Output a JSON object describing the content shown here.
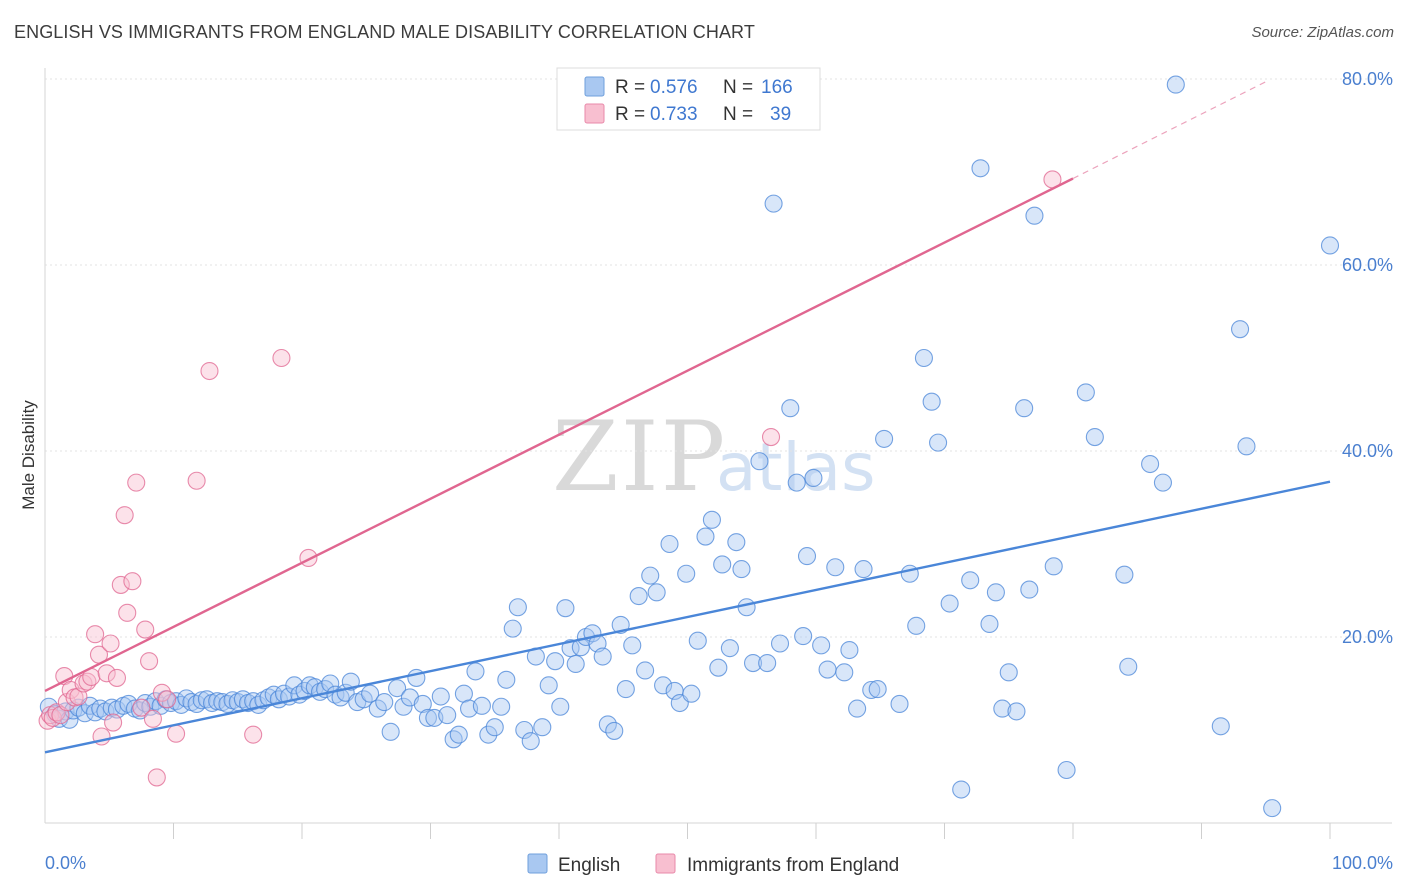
{
  "title": "ENGLISH VS IMMIGRANTS FROM ENGLAND MALE DISABILITY CORRELATION CHART",
  "source": "Source: ZipAtlas.com",
  "watermark": {
    "zip": "ZIP",
    "atlas": "atlas"
  },
  "legend": {
    "r_label": "R =",
    "n_label": "N =",
    "rows": [
      {
        "series": "English",
        "r": "0.576",
        "n": "166",
        "color": "#a9c8f1",
        "border": "#6f9fdc"
      },
      {
        "series": "Immigrants from England",
        "r": "0.733",
        "n": "39",
        "color": "#f8bfd0",
        "border": "#e98aaa"
      }
    ]
  },
  "chart_data": {
    "type": "scatter",
    "title": "ENGLISH VS IMMIGRANTS FROM ENGLAND MALE DISABILITY CORRELATION CHART",
    "xlabel": "",
    "ylabel": "Male Disability",
    "xlim": [
      0,
      100
    ],
    "ylim": [
      0,
      80
    ],
    "x_tick_labels": [
      "0.0%",
      "100.0%"
    ],
    "y_ticks": [
      20,
      40,
      60,
      80
    ],
    "y_tick_labels": [
      "20.0%",
      "40.0%",
      "60.0%",
      "80.0%"
    ],
    "grid": true,
    "legend_position": "top-center",
    "series": [
      {
        "name": "English",
        "color": "#4a86d8",
        "fill": "#a9c8f1",
        "trend": {
          "x0": 0,
          "y0": 7.6,
          "x1": 100,
          "y1": 36.7,
          "style": "solid"
        },
        "points": [
          [
            0.3,
            12.5
          ],
          [
            0.8,
            11.7
          ],
          [
            1.1,
            11.2
          ],
          [
            1.6,
            12.0
          ],
          [
            1.9,
            11.1
          ],
          [
            2.2,
            12.1
          ],
          [
            2.6,
            12.4
          ],
          [
            3.1,
            11.8
          ],
          [
            3.5,
            12.6
          ],
          [
            3.9,
            11.9
          ],
          [
            4.3,
            12.3
          ],
          [
            4.7,
            12.0
          ],
          [
            5.2,
            12.4
          ],
          [
            5.6,
            12.2
          ],
          [
            6.1,
            12.6
          ],
          [
            6.5,
            12.8
          ],
          [
            7.0,
            12.3
          ],
          [
            7.4,
            12.1
          ],
          [
            7.8,
            12.9
          ],
          [
            8.2,
            12.5
          ],
          [
            8.6,
            13.1
          ],
          [
            9.0,
            12.6
          ],
          [
            9.4,
            13.3
          ],
          [
            9.8,
            12.9
          ],
          [
            10.2,
            13.1
          ],
          [
            10.6,
            12.7
          ],
          [
            11.0,
            13.4
          ],
          [
            11.4,
            13.0
          ],
          [
            11.8,
            12.8
          ],
          [
            12.2,
            13.2
          ],
          [
            12.6,
            13.3
          ],
          [
            13.0,
            12.9
          ],
          [
            13.4,
            13.1
          ],
          [
            13.8,
            13.0
          ],
          [
            14.2,
            12.8
          ],
          [
            14.6,
            13.2
          ],
          [
            15.0,
            13.0
          ],
          [
            15.4,
            13.3
          ],
          [
            15.8,
            12.9
          ],
          [
            16.2,
            13.1
          ],
          [
            16.6,
            12.7
          ],
          [
            17.0,
            13.2
          ],
          [
            17.4,
            13.5
          ],
          [
            17.8,
            13.8
          ],
          [
            18.2,
            13.3
          ],
          [
            18.6,
            13.9
          ],
          [
            19.0,
            13.6
          ],
          [
            19.4,
            14.8
          ],
          [
            19.8,
            13.8
          ],
          [
            20.2,
            14.2
          ],
          [
            20.6,
            14.8
          ],
          [
            21.0,
            14.6
          ],
          [
            21.4,
            14.1
          ],
          [
            21.8,
            14.4
          ],
          [
            22.2,
            15.0
          ],
          [
            22.6,
            13.8
          ],
          [
            23.0,
            13.5
          ],
          [
            23.4,
            14.0
          ],
          [
            23.8,
            15.2
          ],
          [
            24.3,
            13.0
          ],
          [
            24.8,
            13.3
          ],
          [
            25.3,
            13.9
          ],
          [
            25.9,
            12.3
          ],
          [
            26.4,
            13.0
          ],
          [
            26.9,
            9.8
          ],
          [
            27.4,
            14.5
          ],
          [
            27.9,
            12.5
          ],
          [
            28.4,
            13.5
          ],
          [
            28.9,
            15.6
          ],
          [
            29.4,
            12.8
          ],
          [
            29.8,
            11.3
          ],
          [
            30.3,
            11.3
          ],
          [
            30.8,
            13.6
          ],
          [
            31.3,
            11.6
          ],
          [
            31.8,
            9.0
          ],
          [
            32.2,
            9.5
          ],
          [
            32.6,
            13.9
          ],
          [
            33.0,
            12.3
          ],
          [
            33.5,
            16.3
          ],
          [
            34.0,
            12.6
          ],
          [
            34.5,
            9.5
          ],
          [
            35.0,
            10.3
          ],
          [
            35.5,
            12.5
          ],
          [
            35.9,
            15.4
          ],
          [
            36.4,
            20.9
          ],
          [
            36.8,
            23.2
          ],
          [
            37.3,
            10.0
          ],
          [
            37.8,
            8.8
          ],
          [
            38.2,
            17.9
          ],
          [
            38.7,
            10.3
          ],
          [
            39.2,
            14.8
          ],
          [
            39.7,
            17.4
          ],
          [
            40.1,
            12.5
          ],
          [
            40.5,
            23.1
          ],
          [
            40.9,
            18.8
          ],
          [
            41.3,
            17.1
          ],
          [
            41.7,
            18.9
          ],
          [
            42.1,
            20.0
          ],
          [
            42.6,
            20.4
          ],
          [
            43.0,
            19.3
          ],
          [
            43.4,
            17.9
          ],
          [
            43.8,
            10.6
          ],
          [
            44.3,
            9.9
          ],
          [
            44.8,
            21.3
          ],
          [
            45.2,
            14.4
          ],
          [
            45.7,
            19.1
          ],
          [
            46.2,
            24.4
          ],
          [
            46.7,
            16.4
          ],
          [
            47.1,
            26.6
          ],
          [
            47.6,
            24.8
          ],
          [
            48.1,
            14.8
          ],
          [
            48.6,
            30.0
          ],
          [
            49.0,
            14.2
          ],
          [
            49.4,
            12.9
          ],
          [
            49.9,
            26.8
          ],
          [
            50.3,
            13.9
          ],
          [
            50.8,
            19.6
          ],
          [
            51.4,
            30.8
          ],
          [
            51.9,
            32.6
          ],
          [
            52.4,
            16.7
          ],
          [
            52.7,
            27.8
          ],
          [
            53.3,
            18.8
          ],
          [
            53.8,
            30.2
          ],
          [
            54.2,
            27.3
          ],
          [
            54.6,
            23.2
          ],
          [
            55.1,
            17.2
          ],
          [
            55.6,
            38.9
          ],
          [
            56.2,
            17.2
          ],
          [
            56.7,
            66.6
          ],
          [
            57.2,
            19.3
          ],
          [
            58.0,
            44.6
          ],
          [
            58.5,
            36.6
          ],
          [
            59.0,
            20.1
          ],
          [
            59.3,
            28.7
          ],
          [
            59.8,
            37.1
          ],
          [
            60.4,
            19.1
          ],
          [
            60.9,
            16.5
          ],
          [
            61.5,
            27.5
          ],
          [
            62.2,
            16.2
          ],
          [
            62.6,
            18.6
          ],
          [
            63.2,
            12.3
          ],
          [
            63.7,
            27.3
          ],
          [
            64.3,
            14.3
          ],
          [
            64.8,
            14.4
          ],
          [
            65.3,
            41.3
          ],
          [
            66.5,
            12.8
          ],
          [
            67.3,
            26.8
          ],
          [
            67.8,
            21.2
          ],
          [
            68.4,
            50.0
          ],
          [
            69.0,
            45.3
          ],
          [
            69.5,
            40.9
          ],
          [
            70.4,
            23.6
          ],
          [
            71.3,
            3.6
          ],
          [
            72.0,
            26.1
          ],
          [
            72.8,
            70.4
          ],
          [
            73.5,
            21.4
          ],
          [
            74.0,
            24.8
          ],
          [
            74.5,
            12.3
          ],
          [
            75.0,
            16.2
          ],
          [
            75.6,
            12.0
          ],
          [
            76.2,
            44.6
          ],
          [
            76.6,
            25.1
          ],
          [
            77.0,
            65.3
          ],
          [
            78.5,
            27.6
          ],
          [
            79.5,
            5.7
          ],
          [
            81.0,
            46.3
          ],
          [
            81.7,
            41.5
          ],
          [
            84.0,
            26.7
          ],
          [
            84.3,
            16.8
          ],
          [
            86.0,
            38.6
          ],
          [
            87.0,
            36.6
          ],
          [
            88.0,
            79.4
          ],
          [
            91.5,
            10.4
          ],
          [
            93.0,
            53.1
          ],
          [
            93.5,
            40.5
          ],
          [
            95.5,
            1.6
          ],
          [
            100.0,
            62.1
          ]
        ]
      },
      {
        "name": "Immigrants from England",
        "color": "#e06690",
        "fill": "#f8bfd0",
        "trend": {
          "x0": 0,
          "y0": 14.2,
          "x1": 80,
          "y1": 69.3,
          "style": "solid",
          "extension_to": {
            "x": 95,
            "y": 79.7
          },
          "extension_style": "dashed"
        },
        "points": [
          [
            0.2,
            11.0
          ],
          [
            0.4,
            11.6
          ],
          [
            0.6,
            11.3
          ],
          [
            0.9,
            11.9
          ],
          [
            1.2,
            11.6
          ],
          [
            1.5,
            15.8
          ],
          [
            1.7,
            13.0
          ],
          [
            2.0,
            14.3
          ],
          [
            2.3,
            13.5
          ],
          [
            2.6,
            13.6
          ],
          [
            3.0,
            15.0
          ],
          [
            3.3,
            15.2
          ],
          [
            3.6,
            15.7
          ],
          [
            3.9,
            20.3
          ],
          [
            4.2,
            18.1
          ],
          [
            4.4,
            9.3
          ],
          [
            4.8,
            16.1
          ],
          [
            5.1,
            19.3
          ],
          [
            5.3,
            10.8
          ],
          [
            5.6,
            15.6
          ],
          [
            5.9,
            25.6
          ],
          [
            6.2,
            33.1
          ],
          [
            6.4,
            22.6
          ],
          [
            6.8,
            26.0
          ],
          [
            7.1,
            36.6
          ],
          [
            7.5,
            12.4
          ],
          [
            7.8,
            20.8
          ],
          [
            8.1,
            17.4
          ],
          [
            8.4,
            11.2
          ],
          [
            8.7,
            4.9
          ],
          [
            9.1,
            14.0
          ],
          [
            9.5,
            13.3
          ],
          [
            10.2,
            9.6
          ],
          [
            11.8,
            36.8
          ],
          [
            12.8,
            48.6
          ],
          [
            16.2,
            9.5
          ],
          [
            18.4,
            50.0
          ],
          [
            20.5,
            28.5
          ],
          [
            78.4,
            69.2
          ],
          [
            56.5,
            41.5
          ]
        ]
      }
    ]
  }
}
